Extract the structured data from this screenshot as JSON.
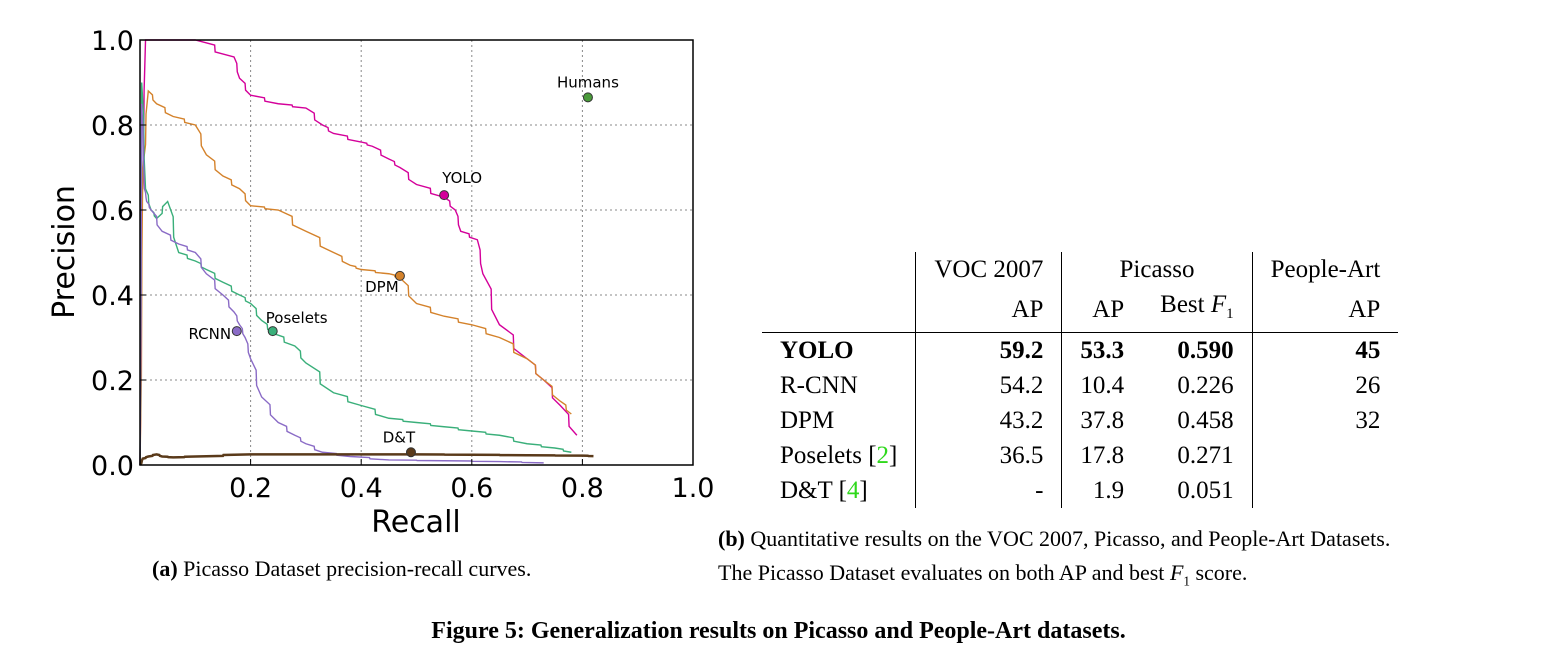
{
  "chart_data": {
    "type": "line",
    "xlabel": "Recall",
    "ylabel": "Precision",
    "xlim": [
      0,
      1
    ],
    "ylim": [
      0,
      1
    ],
    "xticks": [
      "0.2",
      "0.4",
      "0.6",
      "0.8",
      "1.0"
    ],
    "yticks": [
      "0.0",
      "0.2",
      "0.4",
      "0.6",
      "0.8",
      "1.0"
    ],
    "grid": true,
    "series": [
      {
        "name": "YOLO",
        "color": "#d4009a",
        "label_at": [
          0.55,
          0.635
        ],
        "x": [
          0.0,
          0.003,
          0.01,
          0.1,
          0.17,
          0.18,
          0.2,
          0.25,
          0.3,
          0.33,
          0.35,
          0.4,
          0.42,
          0.45,
          0.47,
          0.5,
          0.55,
          0.57,
          0.58,
          0.61,
          0.62,
          0.65,
          0.7,
          0.73,
          0.76,
          0.79
        ],
        "y": [
          0.0,
          0.6,
          1.0,
          1.0,
          0.96,
          0.91,
          0.87,
          0.85,
          0.84,
          0.8,
          0.78,
          0.76,
          0.75,
          0.72,
          0.7,
          0.66,
          0.63,
          0.6,
          0.55,
          0.53,
          0.45,
          0.33,
          0.25,
          0.2,
          0.14,
          0.07
        ]
      },
      {
        "name": "DPM",
        "color": "#d4822b",
        "label_at": [
          0.47,
          0.445
        ],
        "x": [
          0.0,
          0.005,
          0.015,
          0.03,
          0.06,
          0.1,
          0.12,
          0.15,
          0.18,
          0.2,
          0.25,
          0.3,
          0.35,
          0.38,
          0.4,
          0.45,
          0.47,
          0.5,
          0.55,
          0.6,
          0.65,
          0.7,
          0.73,
          0.76,
          0.78
        ],
        "y": [
          0.0,
          0.7,
          0.88,
          0.85,
          0.82,
          0.8,
          0.73,
          0.68,
          0.65,
          0.61,
          0.6,
          0.55,
          0.5,
          0.47,
          0.46,
          0.45,
          0.44,
          0.38,
          0.35,
          0.33,
          0.3,
          0.25,
          0.2,
          0.15,
          0.12
        ]
      },
      {
        "name": "Poselets",
        "color": "#3aaf7a",
        "label_at": [
          0.24,
          0.315
        ],
        "x": [
          0.0,
          0.003,
          0.01,
          0.02,
          0.03,
          0.05,
          0.07,
          0.1,
          0.12,
          0.15,
          0.18,
          0.2,
          0.22,
          0.24,
          0.28,
          0.3,
          0.35,
          0.4,
          0.45,
          0.5,
          0.55,
          0.6,
          0.65,
          0.7,
          0.75,
          0.78
        ],
        "y": [
          0.0,
          0.9,
          0.65,
          0.6,
          0.58,
          0.62,
          0.5,
          0.48,
          0.46,
          0.43,
          0.4,
          0.38,
          0.34,
          0.31,
          0.28,
          0.24,
          0.17,
          0.14,
          0.11,
          0.1,
          0.09,
          0.08,
          0.07,
          0.05,
          0.04,
          0.03
        ]
      },
      {
        "name": "RCNN",
        "color": "#8a6bc6",
        "label_at": [
          0.175,
          0.315
        ],
        "x": [
          0.0,
          0.003,
          0.008,
          0.012,
          0.02,
          0.04,
          0.07,
          0.1,
          0.12,
          0.15,
          0.17,
          0.18,
          0.19,
          0.2,
          0.22,
          0.25,
          0.28,
          0.3,
          0.33,
          0.38,
          0.45,
          0.55,
          0.65,
          0.73
        ],
        "y": [
          0.0,
          0.85,
          0.65,
          0.62,
          0.6,
          0.55,
          0.52,
          0.5,
          0.45,
          0.4,
          0.36,
          0.33,
          0.3,
          0.25,
          0.16,
          0.1,
          0.07,
          0.05,
          0.03,
          0.02,
          0.012,
          0.01,
          0.008,
          0.005
        ]
      },
      {
        "name": "D&T",
        "color": "#5a3a1a",
        "label_at": [
          0.49,
          0.03
        ],
        "x": [
          0.0,
          0.005,
          0.015,
          0.03,
          0.04,
          0.06,
          0.1,
          0.2,
          0.3,
          0.4,
          0.5,
          0.6,
          0.7,
          0.8,
          0.82
        ],
        "y": [
          0.0,
          0.015,
          0.02,
          0.025,
          0.02,
          0.018,
          0.02,
          0.025,
          0.025,
          0.025,
          0.025,
          0.024,
          0.023,
          0.022,
          0.021
        ]
      },
      {
        "name": "Humans",
        "color": "#4a9a3a",
        "point": [
          0.81,
          0.865
        ],
        "label_at": [
          0.81,
          0.865
        ]
      }
    ]
  },
  "captions": {
    "a_prefix": "(a)",
    "a_text": " Picasso Dataset precision-recall curves.",
    "b_prefix": "(b)",
    "b_line1": " Quantitative results on the VOC 2007, Picasso, and People-Art Datasets.",
    "b_line2_pre": "The Picasso Dataset evaluates on both AP and best ",
    "b_line2_F": "F",
    "b_line2_sub": "1",
    "b_line2_post": " score.",
    "figure_prefix": "Figure 5:",
    "figure_text": " Generalization results on Picasso and People-Art datasets."
  },
  "table": {
    "header1": [
      "",
      "VOC 2007",
      "Picasso",
      "People-Art"
    ],
    "header2": [
      "",
      "AP",
      "AP",
      "Best",
      "F",
      "1",
      "AP"
    ],
    "rows": [
      {
        "name": "YOLO",
        "ref": "",
        "voc": "59.2",
        "pap": "53.3",
        "f1": "0.590",
        "people": "45"
      },
      {
        "name": "R-CNN",
        "ref": "",
        "voc": "54.2",
        "pap": "10.4",
        "f1": "0.226",
        "people": "26"
      },
      {
        "name": "DPM",
        "ref": "",
        "voc": "43.2",
        "pap": "37.8",
        "f1": "0.458",
        "people": "32"
      },
      {
        "name": "Poselets",
        "ref": "2",
        "voc": "36.5",
        "pap": "17.8",
        "f1": "0.271",
        "people": ""
      },
      {
        "name": "D&T",
        "ref": "4",
        "voc": "-",
        "pap": "1.9",
        "f1": "0.051",
        "people": ""
      }
    ]
  }
}
